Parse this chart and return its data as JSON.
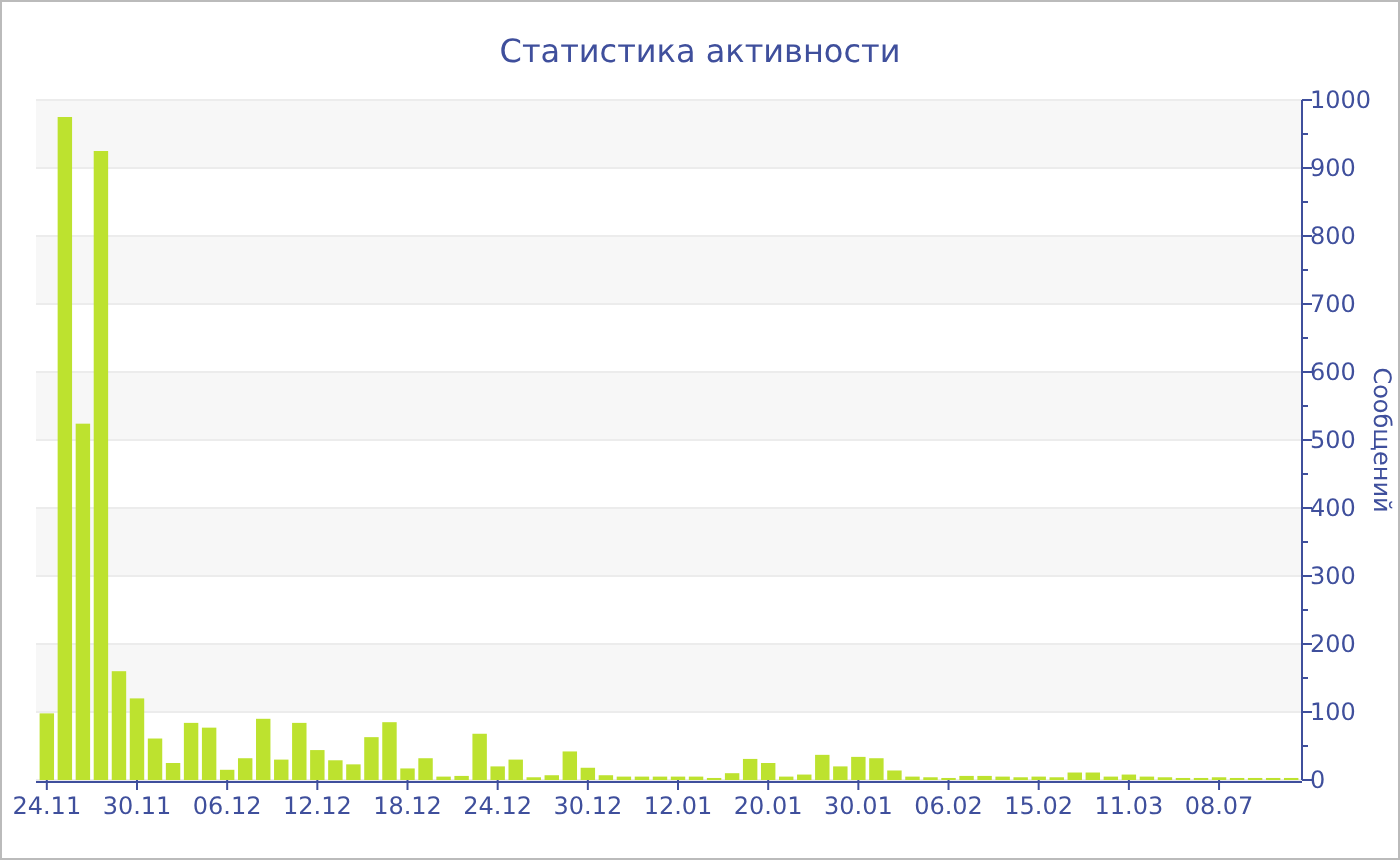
{
  "chart_data": {
    "type": "bar",
    "title": "Статистика активности",
    "ylabel": "Сообщений",
    "categories": [
      "24.11",
      null,
      null,
      null,
      null,
      "30.11",
      null,
      null,
      null,
      null,
      "06.12",
      null,
      null,
      null,
      null,
      "12.12",
      null,
      null,
      null,
      null,
      "18.12",
      null,
      null,
      null,
      null,
      "24.12",
      null,
      null,
      null,
      null,
      "30.12",
      null,
      null,
      null,
      null,
      "12.01",
      null,
      null,
      null,
      null,
      "20.01",
      null,
      null,
      null,
      null,
      "30.01",
      null,
      null,
      null,
      null,
      "06.02",
      null,
      null,
      null,
      null,
      "15.02",
      null,
      null,
      null,
      null,
      "11.03",
      null,
      null,
      null,
      null,
      "08.07",
      null,
      null,
      null,
      null
    ],
    "values": [
      98,
      975,
      524,
      925,
      160,
      120,
      61,
      25,
      84,
      77,
      15,
      32,
      90,
      30,
      84,
      44,
      29,
      23,
      63,
      85,
      17,
      32,
      5,
      6,
      68,
      20,
      30,
      4,
      7,
      42,
      18,
      7,
      5,
      5,
      5,
      5,
      5,
      3,
      10,
      31,
      25,
      5,
      8,
      37,
      20,
      34,
      32,
      14,
      5,
      4,
      3,
      6,
      6,
      5,
      4,
      5,
      4,
      11,
      11,
      5,
      8,
      5,
      4,
      3,
      3,
      4,
      3,
      3,
      3,
      3
    ],
    "color": "#bde22f",
    "ylim": [
      0,
      1000
    ],
    "yticks": [
      0,
      {
        "value": 50,
        "label": null
      },
      100,
      {
        "value": 150,
        "label": null
      },
      200,
      {
        "value": 250,
        "label": null
      },
      300,
      {
        "value": 350,
        "label": null
      },
      400,
      {
        "value": 450,
        "label": null
      },
      500,
      {
        "value": 550,
        "label": null
      },
      600,
      {
        "value": 650,
        "label": null
      },
      700,
      {
        "value": 750,
        "label": null
      },
      800,
      {
        "value": 850,
        "label": null
      },
      900,
      {
        "value": 950,
        "label": null
      },
      1000
    ],
    "grid": "y"
  }
}
